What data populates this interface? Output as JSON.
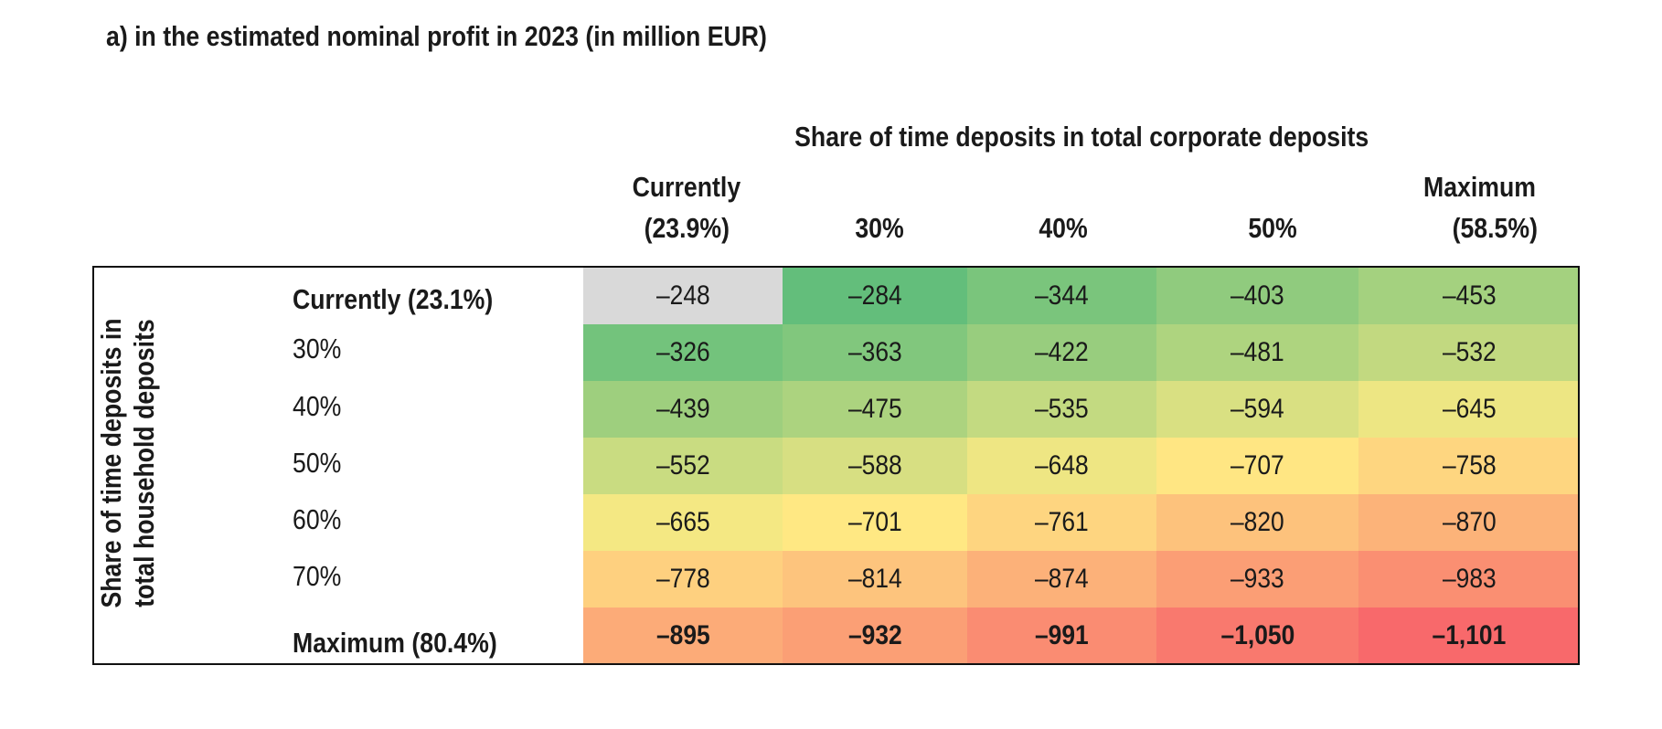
{
  "title": "a) in the estimated nominal profit in 2023 (in million EUR)",
  "chart_data": {
    "type": "heatmap",
    "title": "a) in the estimated nominal profit in 2023 (in million EUR)",
    "column_header": "Share of time deposits in total corporate deposits",
    "row_header": "Share of time deposits in total household deposits",
    "columns": [
      {
        "line1": "Currently",
        "line2": "(23.9%)"
      },
      {
        "line1": "",
        "line2": "30%"
      },
      {
        "line1": "",
        "line2": "40%"
      },
      {
        "line1": "",
        "line2": "50%"
      },
      {
        "line1": "Maximum",
        "line2": "(58.5%)"
      }
    ],
    "rows": [
      {
        "label": "Currently (23.1%)",
        "bold": true
      },
      {
        "label": "30%",
        "bold": false
      },
      {
        "label": "40%",
        "bold": false
      },
      {
        "label": "50%",
        "bold": false
      },
      {
        "label": "60%",
        "bold": false
      },
      {
        "label": "70%",
        "bold": false
      },
      {
        "label": "Maximum (80.4%)",
        "bold": true
      }
    ],
    "values": [
      [
        -248,
        -284,
        -344,
        -403,
        -453
      ],
      [
        -326,
        -363,
        -422,
        -481,
        -532
      ],
      [
        -439,
        -475,
        -535,
        -594,
        -645
      ],
      [
        -552,
        -588,
        -648,
        -707,
        -758
      ],
      [
        -665,
        -701,
        -761,
        -820,
        -870
      ],
      [
        -778,
        -814,
        -874,
        -933,
        -983
      ],
      [
        -895,
        -932,
        -991,
        -1050,
        -1101
      ]
    ],
    "baseline_cell_color": "#d9d9d9",
    "colors": {
      "good": "#63be7b",
      "mid": "#ffeb84",
      "bad": "#f8696b"
    }
  }
}
